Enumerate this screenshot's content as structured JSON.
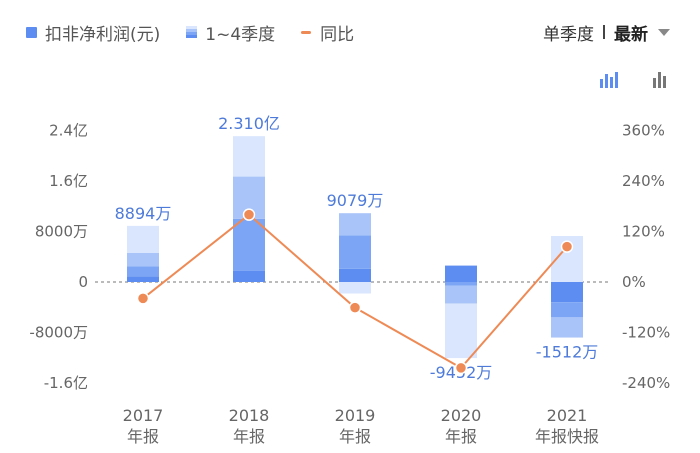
{
  "legend": {
    "net_profit": "扣非净利润(元)",
    "quarters": "1~4季度",
    "yoy": "同比"
  },
  "period": {
    "label": "单季度",
    "selected": "最新"
  },
  "colors": {
    "quarter_light": "#d9e6fd",
    "quarter_mid": "#a9c4f8",
    "quarter_dark": "#7ca6f5",
    "quarter_solid": "#5d8df0",
    "line": "#ee8a55",
    "value_label": "#4e7bd9",
    "axis_text": "#666666"
  },
  "icons": [
    "bar-chart-stacked-icon",
    "bar-chart-icon",
    "dropdown-caret-icon"
  ],
  "chart_data": {
    "type": "bar",
    "categories": [
      [
        "2017",
        "年报"
      ],
      [
        "2018",
        "年报"
      ],
      [
        "2019",
        "年报"
      ],
      [
        "2020",
        "年报"
      ],
      [
        "2021",
        "年报快报"
      ]
    ],
    "ylim": [
      -20000,
      24000
    ],
    "y_ticks": [
      24000,
      16000,
      8000,
      0,
      -8000,
      -16000
    ],
    "y_tick_labels": [
      "2.4亿",
      "1.6亿",
      "8000万",
      "0",
      "-8000万",
      "-1.6亿"
    ],
    "y2lim": [
      -360,
      360
    ],
    "y2_ticks": [
      360,
      240,
      120,
      0,
      -120,
      -240
    ],
    "y2_tick_labels": [
      "360%",
      "240%",
      "120%",
      "0%",
      "-120%",
      "-240%"
    ],
    "value_unit": "万元",
    "annual_values": [
      8894,
      23100,
      9079,
      -9452,
      -1512
    ],
    "annual_labels": [
      "8894万",
      "2.310亿",
      "9079万",
      "-9452万",
      "-1512万"
    ],
    "label_position": [
      "above",
      "above",
      "above",
      "below",
      "below"
    ],
    "quarters": [
      [
        900,
        1600,
        2100,
        4294
      ],
      [
        1800,
        8200,
        6700,
        6400
      ],
      [
        2100,
        5300,
        3500,
        -1821
      ],
      [
        2600,
        -600,
        -2800,
        -8652
      ],
      [
        -3200,
        -2400,
        -3200,
        7288
      ]
    ],
    "series": [
      {
        "name": "同比",
        "axis": "right",
        "values": [
          -39,
          160,
          -61,
          -204,
          84
        ]
      }
    ],
    "zero_line": "dashed"
  }
}
